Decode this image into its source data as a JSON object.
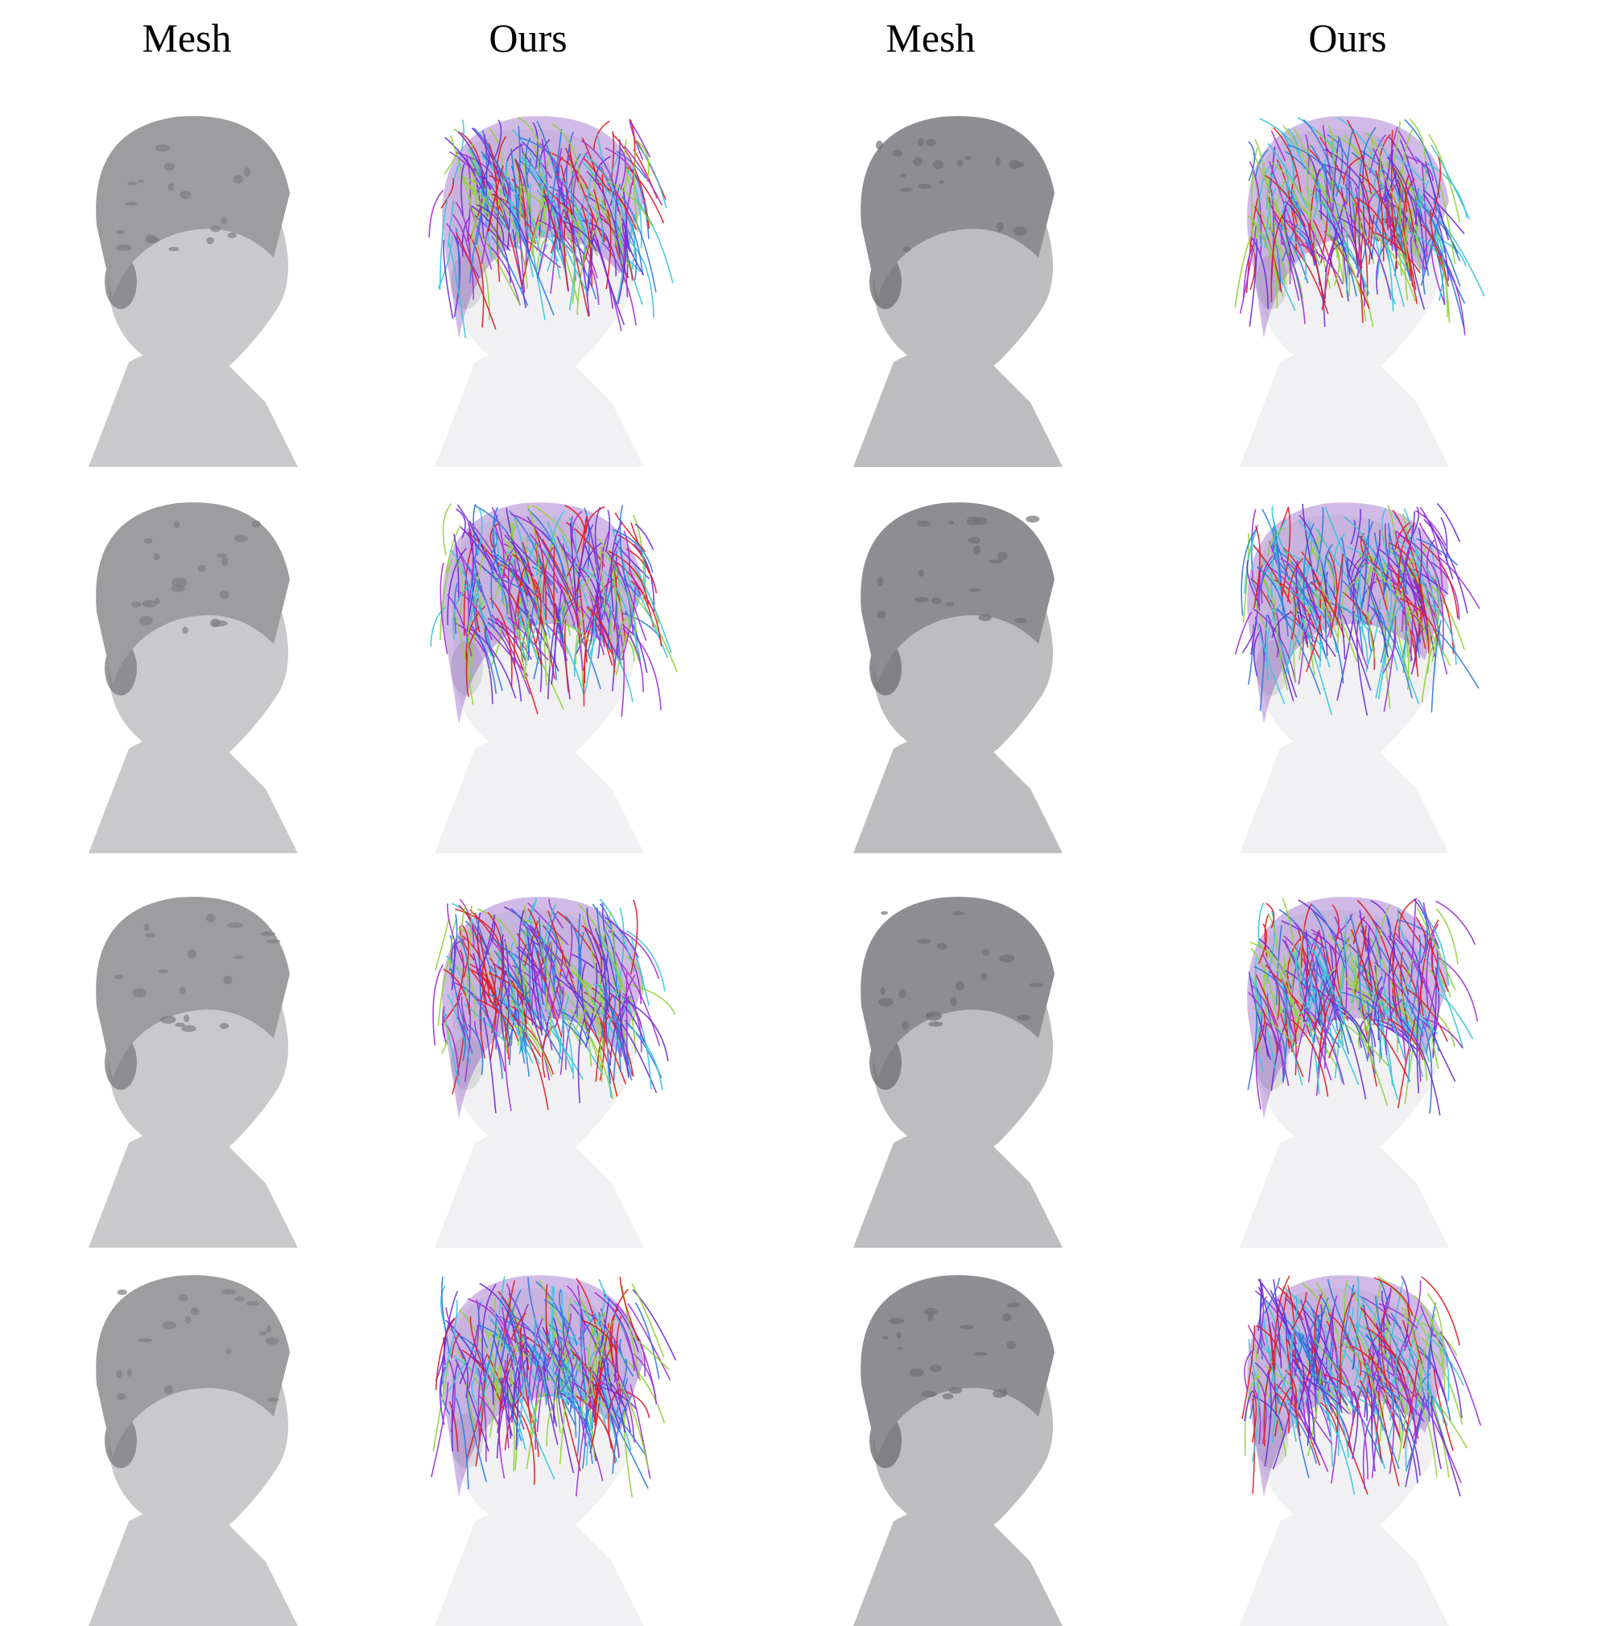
{
  "headers": [
    "Mesh",
    "Ours",
    "Mesh",
    "Ours"
  ],
  "columns": [
    {
      "kind": "mesh",
      "colors": {
        "skin": "#c9c9cb",
        "hair": "#9d9da0",
        "shadow": "#7f7f82"
      }
    },
    {
      "kind": "strands",
      "colors": {
        "skin": "#f1f1f3",
        "shadow": "#d4d4d7"
      }
    },
    {
      "kind": "mesh",
      "colors": {
        "skin": "#bdbdc0",
        "hair": "#8e8e92",
        "shadow": "#727276"
      }
    },
    {
      "kind": "strands",
      "colors": {
        "skin": "#f1f1f3",
        "shadow": "#d4d4d7"
      }
    }
  ],
  "strand_palette": [
    "#e01b24",
    "#a02cd8",
    "#35c5d8",
    "#8fd238",
    "#2e78e0",
    "#6c2bd9"
  ],
  "rows": 4
}
